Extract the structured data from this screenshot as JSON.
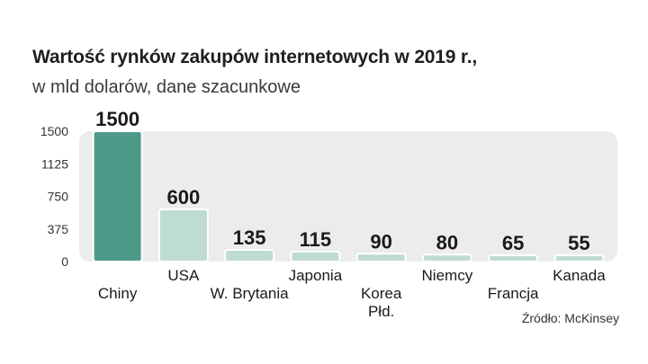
{
  "header": {
    "title": "Wartość rynków zakupów internetowych w 2019 r.,",
    "subtitle": "w mld dolarów, dane szacunkowe"
  },
  "footer": {
    "source": "Źródło: McKinsey"
  },
  "colors": {
    "highlight_bar": "#4e9a88",
    "other_bar": "#bfdcd4",
    "bar_edge": "#ffffff",
    "panel": "#ececec"
  },
  "chart_data": {
    "type": "bar",
    "title": "Wartość rynków zakupów internetowych w 2019 r.,",
    "subtitle": "w mld dolarów, dane szacunkowe",
    "categories": [
      "Chiny",
      "USA",
      "W. Brytania",
      "Japonia",
      "Korea Płd.",
      "Niemcy",
      "Francja",
      "Kanada"
    ],
    "category_label_lines": [
      [
        "Chiny"
      ],
      [
        "USA"
      ],
      [
        "W. Brytania"
      ],
      [
        "Japonia"
      ],
      [
        "Korea",
        "Płd."
      ],
      [
        "Niemcy"
      ],
      [
        "Francja"
      ],
      [
        "Kanada"
      ]
    ],
    "values": [
      1500,
      600,
      135,
      115,
      90,
      80,
      65,
      55
    ],
    "data_labels": [
      "1500",
      "600",
      "135",
      "115",
      "90",
      "80",
      "65",
      "55"
    ],
    "highlight_index": 0,
    "yticks": [
      0,
      375,
      750,
      1125,
      1500
    ],
    "ytick_labels": [
      "0",
      "375",
      "750",
      "1125",
      "1500"
    ],
    "ylim": [
      0,
      1500
    ],
    "xlabel": "",
    "ylabel": "",
    "grid": false,
    "legend": "none"
  }
}
